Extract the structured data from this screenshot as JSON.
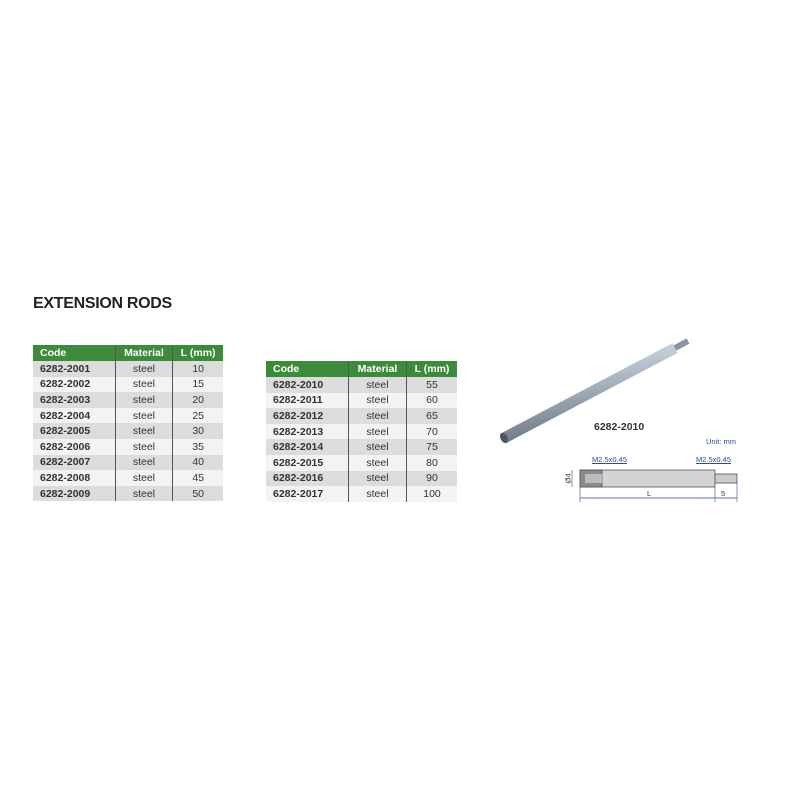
{
  "title": "EXTENSION RODS",
  "headers": [
    "Code",
    "Material",
    "L (mm)"
  ],
  "table1": [
    [
      "6282-2001",
      "steel",
      "10"
    ],
    [
      "6282-2002",
      "steel",
      "15"
    ],
    [
      "6282-2003",
      "steel",
      "20"
    ],
    [
      "6282-2004",
      "steel",
      "25"
    ],
    [
      "6282-2005",
      "steel",
      "30"
    ],
    [
      "6282-2006",
      "steel",
      "35"
    ],
    [
      "6282-2007",
      "steel",
      "40"
    ],
    [
      "6282-2008",
      "steel",
      "45"
    ],
    [
      "6282-2009",
      "steel",
      "50"
    ]
  ],
  "table2": [
    [
      "6282-2010",
      "steel",
      "55"
    ],
    [
      "6282-2011",
      "steel",
      "60"
    ],
    [
      "6282-2012",
      "steel",
      "65"
    ],
    [
      "6282-2013",
      "steel",
      "70"
    ],
    [
      "6282-2014",
      "steel",
      "75"
    ],
    [
      "6282-2015",
      "steel",
      "80"
    ],
    [
      "6282-2016",
      "steel",
      "90"
    ],
    [
      "6282-2017",
      "steel",
      "100"
    ]
  ],
  "figure": {
    "model": "6282-2010",
    "unit": "Unit: mm",
    "thread_left": "M2.5x0.45",
    "thread_right": "M2.5x0.45",
    "diameter": "Ø4",
    "length": "L",
    "pin_length": "5"
  },
  "colors": {
    "header": "#3b8b3b",
    "row_dark": "#dcdcdc",
    "row_light": "#f3f3f3",
    "annotation": "#2a4a9a"
  }
}
